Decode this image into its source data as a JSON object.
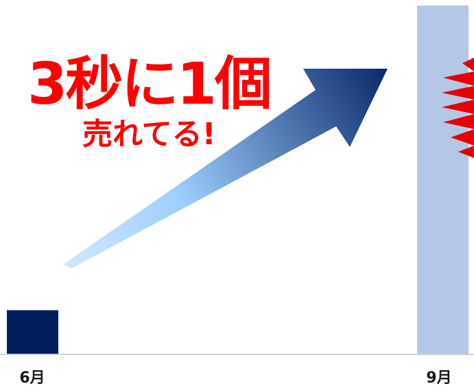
{
  "chart_data": {
    "type": "bar",
    "categories": [
      "6月",
      "9月"
    ],
    "values": [
      1,
      8
    ],
    "ylim": [
      0,
      8
    ],
    "grid": false,
    "legend": "none",
    "colors": [
      "#001e5e",
      "#b4c7e7"
    ],
    "annotations": {
      "headline": "3秒に1個",
      "subheadline": "売れてる!"
    }
  },
  "theme": {
    "accent_red": "#ff0000",
    "burst_red": "#e60000",
    "arrow_dark": "#0b2a6b",
    "arrow_light": "#cfe8ff",
    "baseline": "#d0d0d0"
  }
}
